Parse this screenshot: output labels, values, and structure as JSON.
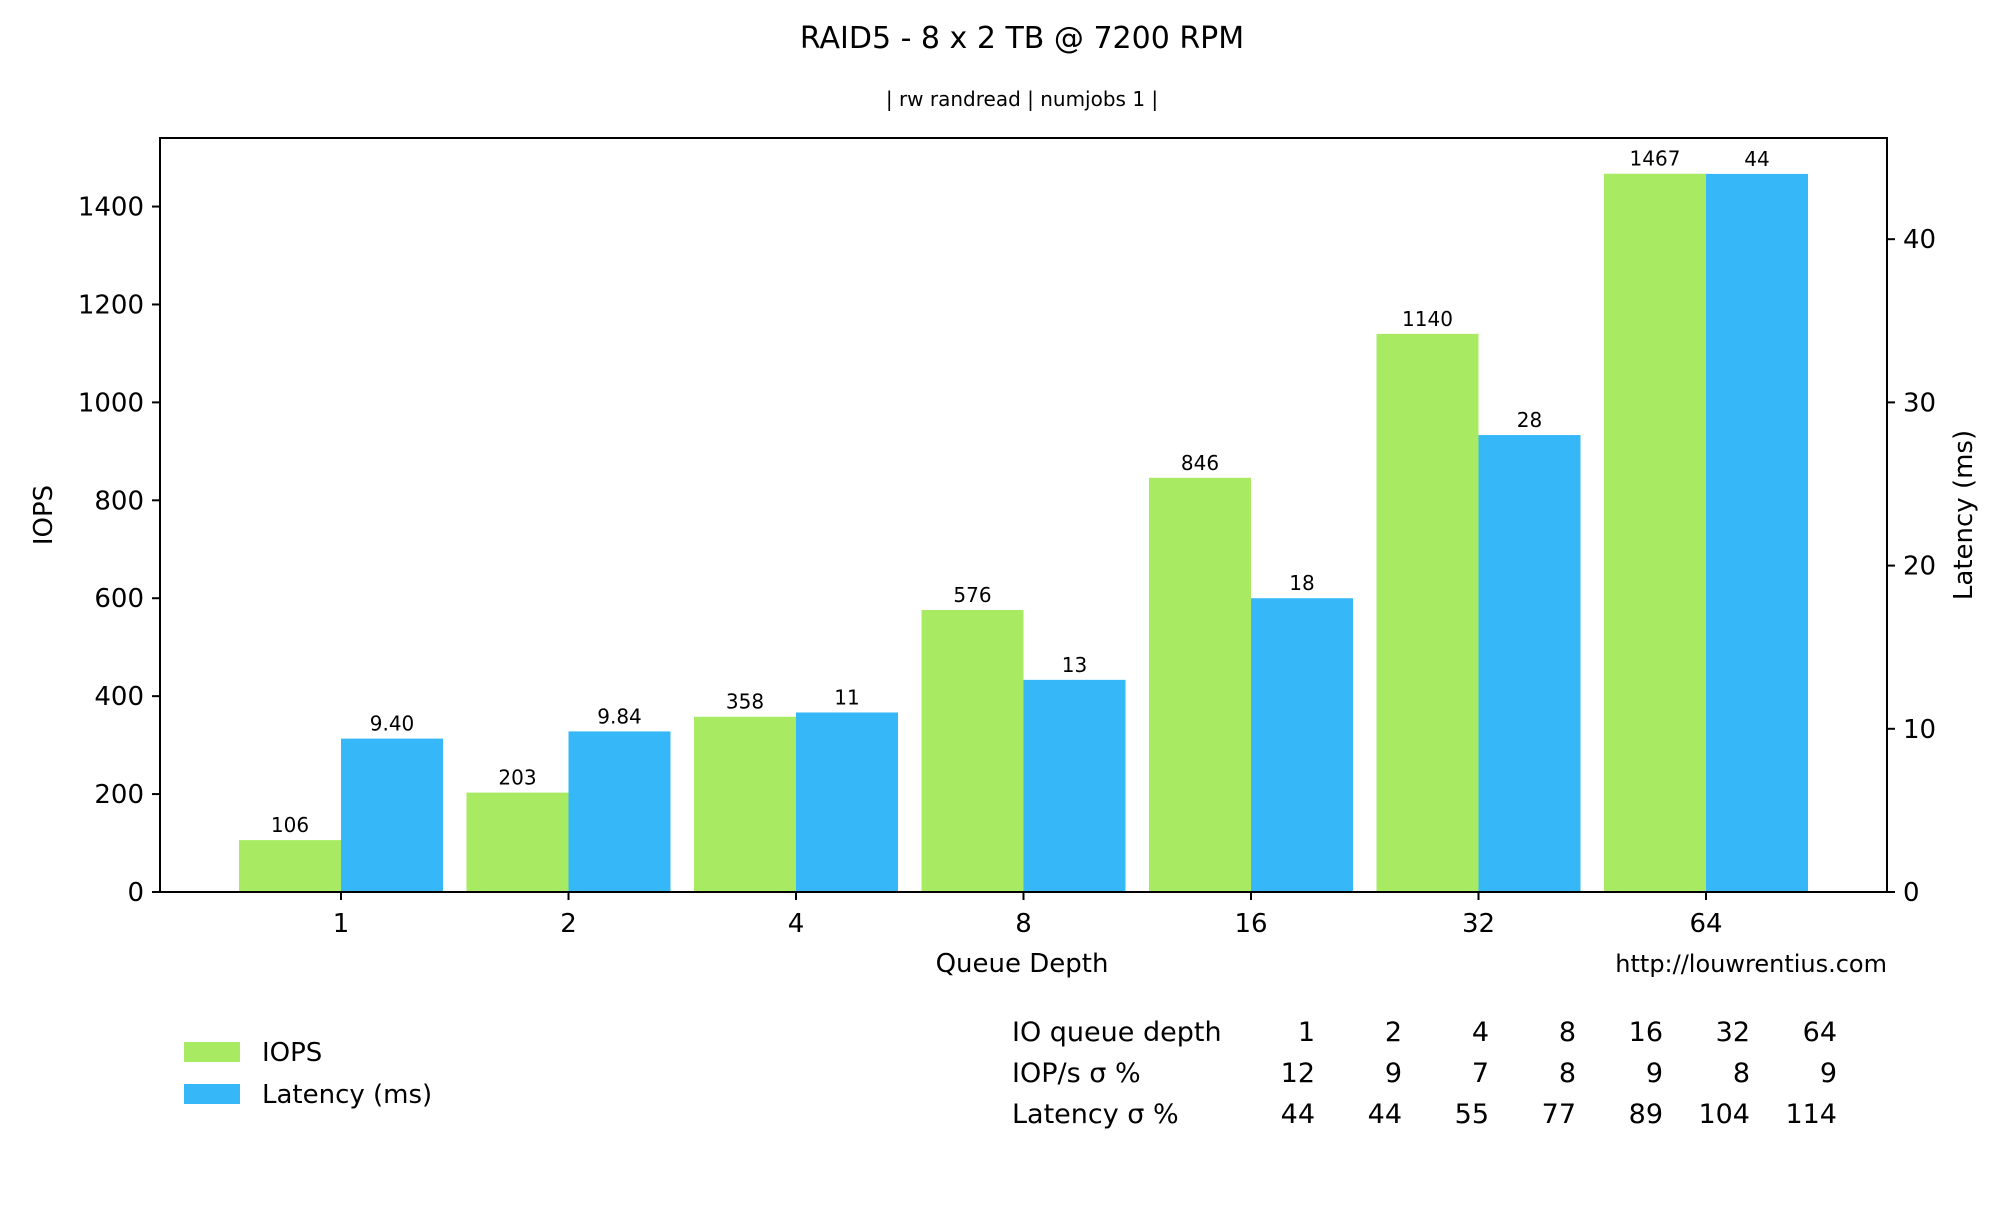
{
  "chart_data": {
    "type": "bar",
    "title": "RAID5 - 8 x 2 TB @ 7200 RPM",
    "subtitle": "| rw randread | numjobs 1 |",
    "xlabel": "Queue Depth",
    "ylabel_left": "IOPS",
    "ylabel_right": "Latency (ms)",
    "categories": [
      "1",
      "2",
      "4",
      "8",
      "16",
      "32",
      "64"
    ],
    "series": [
      {
        "name": "IOPS",
        "axis": "left",
        "color": "#a8eb63",
        "values": [
          106,
          203,
          358,
          576,
          846,
          1140,
          1467
        ],
        "labels": [
          "106",
          "203",
          "358",
          "576",
          "846",
          "1140",
          "1467"
        ]
      },
      {
        "name": "Latency (ms)",
        "axis": "right",
        "color": "#36b8f8",
        "values": [
          9.4,
          9.84,
          11,
          13,
          18,
          28,
          44
        ],
        "labels": [
          "9.40",
          "9.84",
          "11",
          "13",
          "18",
          "28",
          "44"
        ]
      }
    ],
    "ylim_left": [
      0,
      1540
    ],
    "ylim_right": [
      0,
      46.2
    ],
    "yticks_left": [
      0,
      200,
      400,
      600,
      800,
      1000,
      1200,
      1400
    ],
    "yticks_right": [
      0,
      10,
      20,
      30,
      40
    ],
    "grid": false,
    "legend_position": "bottom-left",
    "watermark": "http://louwrentius.com",
    "stats_table": {
      "rows": [
        {
          "label": "IO queue depth",
          "values": [
            "1",
            "2",
            "4",
            "8",
            "16",
            "32",
            "64"
          ]
        },
        {
          "label": "IOP/s σ %",
          "values": [
            "12",
            "9",
            "7",
            "8",
            "9",
            "8",
            "9"
          ]
        },
        {
          "label": "Latency σ %",
          "values": [
            "44",
            "44",
            "55",
            "77",
            "89",
            "104",
            "114"
          ]
        }
      ]
    }
  }
}
